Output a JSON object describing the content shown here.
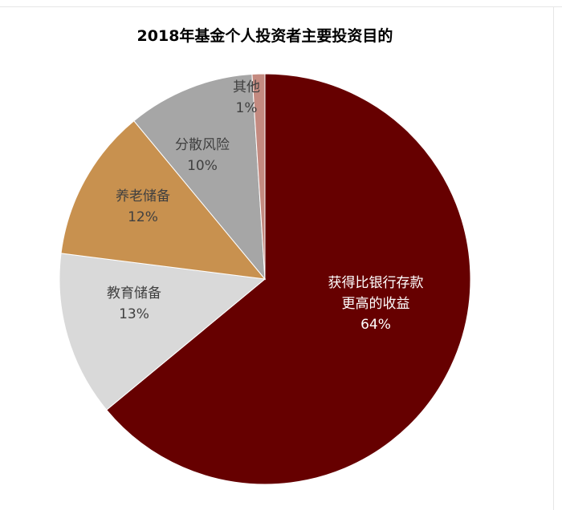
{
  "chart_data": {
    "type": "pie",
    "title": "2018年基金个人投资者主要投资目的",
    "slices": [
      {
        "label_lines": [
          "获得比银行存款",
          "更高的收益"
        ],
        "value_label": "64%",
        "value": 64,
        "color": "#660000",
        "text_color": "#ffffff"
      },
      {
        "label_lines": [
          "教育储备"
        ],
        "value_label": "13%",
        "value": 13,
        "color": "#d9d9d9",
        "text_color": "#404040"
      },
      {
        "label_lines": [
          "养老储备"
        ],
        "value_label": "12%",
        "value": 12,
        "color": "#c8914f",
        "text_color": "#404040"
      },
      {
        "label_lines": [
          "分散风险"
        ],
        "value_label": "10%",
        "value": 10,
        "color": "#a6a6a6",
        "text_color": "#404040"
      },
      {
        "label_lines": [
          "其他"
        ],
        "value_label": "1%",
        "value": 1,
        "color": "#c48a80",
        "text_color": "#404040"
      }
    ]
  }
}
